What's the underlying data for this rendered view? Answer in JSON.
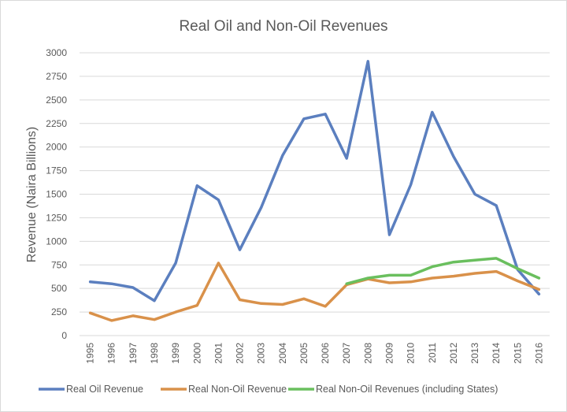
{
  "chart_data": {
    "type": "line",
    "title": "Real Oil and Non-Oil Revenues",
    "xlabel": "",
    "ylabel": "Revenue (Naira Billions)",
    "ylim": [
      0,
      3000
    ],
    "yticks": [
      0,
      250,
      500,
      750,
      1000,
      1250,
      1500,
      1750,
      2000,
      2250,
      2500,
      2750,
      3000
    ],
    "grid": true,
    "legend_position": "bottom",
    "categories": [
      "1995",
      "1996",
      "1997",
      "1998",
      "1999",
      "2000",
      "2001",
      "2002",
      "2003",
      "2004",
      "2005",
      "2006",
      "2007",
      "2008",
      "2009",
      "2010",
      "2011",
      "2012",
      "2013",
      "2014",
      "2015",
      "2016"
    ],
    "series": [
      {
        "name": "Real Oil Revenue",
        "color": "#5b7fbf",
        "values": [
          570,
          550,
          510,
          370,
          770,
          1590,
          1440,
          910,
          1360,
          1910,
          2300,
          2350,
          1880,
          2910,
          1070,
          1600,
          2370,
          1900,
          1500,
          1380,
          700,
          440
        ]
      },
      {
        "name": "Real Non-Oil Revenue",
        "color": "#d9914a",
        "values": [
          240,
          160,
          210,
          170,
          250,
          320,
          770,
          380,
          340,
          330,
          390,
          310,
          540,
          600,
          560,
          570,
          610,
          630,
          660,
          680,
          580,
          490
        ]
      },
      {
        "name": "Real Non-Oil Revenues (including States)",
        "color": "#6abf5e",
        "values": [
          null,
          null,
          null,
          null,
          null,
          null,
          null,
          null,
          null,
          null,
          null,
          null,
          550,
          610,
          640,
          640,
          730,
          780,
          800,
          820,
          710,
          610
        ]
      }
    ]
  }
}
